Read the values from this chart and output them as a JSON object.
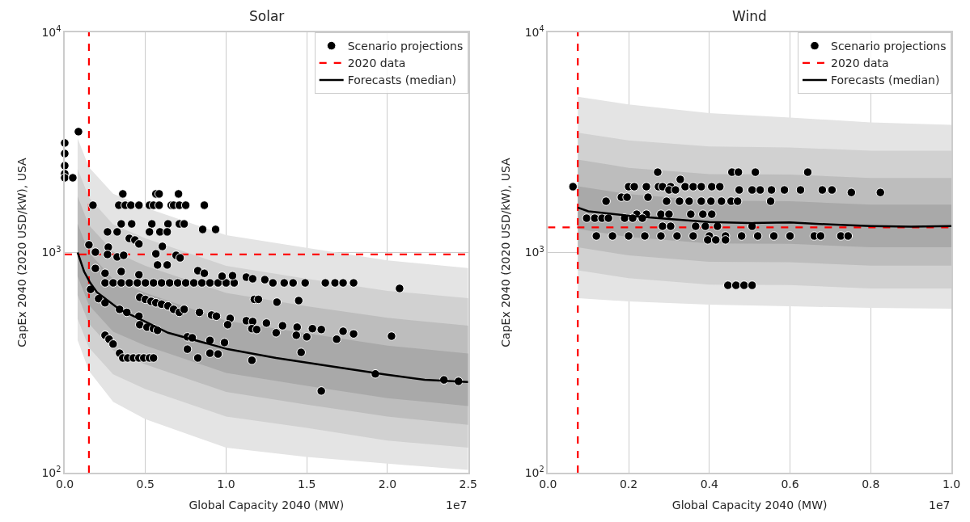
{
  "chart_data": [
    {
      "type": "scatter",
      "title": "Solar",
      "xlabel": "Global Capacity 2040 (MW)",
      "ylabel": "CapEx 2040 (2020 USD/kW), USA",
      "log": "y",
      "grid": true,
      "legend": "top right",
      "marker": "circle",
      "xlim": [
        0,
        2.5
      ],
      "xticks": [
        {
          "value": 0,
          "label": "0.0"
        },
        {
          "value": 0.5,
          "label": "0.5"
        },
        {
          "value": 1,
          "label": "1.0"
        },
        {
          "value": 1.5,
          "label": "1.5"
        },
        {
          "value": 2,
          "label": "2.0"
        },
        {
          "value": 2.5,
          "label": "2.5"
        }
      ],
      "ylim": [
        100,
        10000
      ],
      "yticks": [
        {
          "value": 100,
          "label": "10$^{2}$"
        },
        {
          "value": 1000,
          "label": "10$^{3}$"
        },
        {
          "value": 10000,
          "label": "10$^{4}$"
        }
      ],
      "annotations": [
        "1e7"
      ],
      "ref_lines": [
        {
          "axis": "x",
          "value": 0.15,
          "color": "#ff0000",
          "line_style": "dashed"
        },
        {
          "axis": "y",
          "value": 980,
          "label": "2020 data",
          "color": "#ff0000",
          "line_style": "dashed"
        }
      ],
      "series": [
        {
          "type": "line",
          "marker": "none",
          "color": "#e4e4e4",
          "x": [
            0.08,
            0.15,
            0.3,
            0.5,
            1.0,
            1.5,
            2.0,
            2.5
          ],
          "values": [
            null,
            null,
            null,
            null,
            null,
            null,
            null,
            null
          ],
          "lower": [
            400,
            290,
            210,
            175,
            130,
            118,
            110,
            103
          ],
          "upper": [
            3300,
            2440,
            1850,
            1600,
            1200,
            1050,
            920,
            850
          ]
        },
        {
          "type": "line",
          "marker": "none",
          "color": "#d1d1d1",
          "x": [
            0.08,
            0.15,
            0.3,
            0.5,
            1.0,
            1.5,
            2.0,
            2.5
          ],
          "values": [
            null,
            null,
            null,
            null,
            null,
            null,
            null,
            null
          ],
          "lower": [
            500,
            370,
            280,
            240,
            180,
            160,
            140,
            130
          ],
          "upper": [
            2400,
            1780,
            1340,
            1160,
            870,
            760,
            670,
            620
          ]
        },
        {
          "type": "line",
          "marker": "none",
          "color": "#bdbdbd",
          "x": [
            0.08,
            0.15,
            0.3,
            0.5,
            1.0,
            1.5,
            2.0,
            2.5
          ],
          "values": [
            null,
            null,
            null,
            null,
            null,
            null,
            null,
            null
          ],
          "lower": [
            640,
            475,
            360,
            310,
            233,
            204,
            180,
            165
          ],
          "upper": [
            1800,
            1330,
            1010,
            870,
            655,
            570,
            505,
            465
          ]
        },
        {
          "type": "line",
          "marker": "none",
          "color": "#a9a9a9",
          "x": [
            0.08,
            0.15,
            0.3,
            0.5,
            1.0,
            1.5,
            2.0,
            2.5
          ],
          "values": [
            null,
            null,
            null,
            null,
            null,
            null,
            null,
            null
          ],
          "lower": [
            780,
            577,
            437,
            378,
            284,
            248,
            218,
            201
          ],
          "upper": [
            1350,
            1000,
            756,
            655,
            490,
            430,
            378,
            348
          ]
        },
        {
          "type": "scatter",
          "name": "Scenario projections",
          "color": "#000000",
          "x": [
            0,
            0,
            0,
            0,
            0,
            0.05,
            0.085,
            0.36,
            0.565,
            0.585,
            0.705,
            0.175,
            0.335,
            0.375,
            0.41,
            0.46,
            0.525,
            0.55,
            0.585,
            0.66,
            0.675,
            0.71,
            0.75,
            0.865,
            0.35,
            0.415,
            0.54,
            0.64,
            0.71,
            0.74,
            0.855,
            0.935,
            0.265,
            0.325,
            0.525,
            0.59,
            0.635,
            0.4,
            0.435,
            0.46,
            0.15,
            0.27,
            0.605,
            0.19,
            0.265,
            0.325,
            0.365,
            0.565,
            0.69,
            0.715,
            0.575,
            0.635,
            0.19,
            0.25,
            0.35,
            0.46,
            0.825,
            0.865,
            0.25,
            0.3,
            0.35,
            0.4,
            0.45,
            0.5,
            0.55,
            0.6,
            0.65,
            0.7,
            0.75,
            0.8,
            0.85,
            0.9,
            0.95,
            1.0,
            1.05,
            1.29,
            1.36,
            1.415,
            1.49,
            1.615,
            1.675,
            1.725,
            1.79,
            0.975,
            1.04,
            1.125,
            1.165,
            1.24,
            2.075,
            0.16,
            1.175,
            1.2,
            1.315,
            1.45,
            0.465,
            0.5,
            0.535,
            0.565,
            0.6,
            0.64,
            0.675,
            0.71,
            0.74,
            0.835,
            0.91,
            0.94,
            1.025,
            1.125,
            1.165,
            1.25,
            1.35,
            1.44,
            1.535,
            1.59,
            1.01,
            1.16,
            1.19,
            1.31,
            1.435,
            1.5,
            1.685,
            1.725,
            1.79,
            2.025,
            0.25,
            0.275,
            0.3,
            0.34,
            0.36,
            0.39,
            0.425,
            0.46,
            0.49,
            0.525,
            0.55,
            0.21,
            0.25,
            0.34,
            0.385,
            0.46,
            0.465,
            0.51,
            0.55,
            0.575,
            0.76,
            0.79,
            0.9,
            0.99,
            0.76,
            0.825,
            0.9,
            0.95,
            1.16,
            1.465,
            1.59,
            1.925,
            2.35,
            2.44
          ],
          "values": [
            3145,
            2815,
            2480,
            2280,
            2185,
            2185,
            3540,
            1846,
            1846,
            1846,
            1846,
            1640,
            1640,
            1640,
            1640,
            1640,
            1640,
            1640,
            1640,
            1640,
            1640,
            1640,
            1640,
            1640,
            1349,
            1349,
            1349,
            1349,
            1349,
            1349,
            1273,
            1273,
            1241,
            1241,
            1241,
            1241,
            1241,
            1159,
            1140,
            1094,
            1084,
            1057,
            1066,
            1004,
            980,
            955,
            971,
            987,
            971,
            946,
            878,
            878,
            847,
            805,
            820,
            793,
            827,
            805,
            728,
            728,
            728,
            728,
            728,
            728,
            728,
            728,
            728,
            728,
            728,
            728,
            728,
            728,
            728,
            728,
            728,
            728,
            728,
            728,
            728,
            728,
            728,
            728,
            728,
            780,
            785,
            773,
            760,
            753,
            687,
            680,
            613,
            613,
            595,
            605,
            626,
            613,
            600,
            591,
            583,
            572,
            552,
            535,
            552,
            535,
            520,
            514,
            502,
            490,
            486,
            478,
            465,
            458,
            451,
            447,
            470,
            451,
            447,
            432,
            421,
            414,
            404,
            439,
            427,
            417,
            421,
            404,
            384,
            349,
            332,
            332,
            332,
            332,
            332,
            332,
            332,
            617,
            591,
            552,
            535,
            514,
            470,
            458,
            451,
            443,
            414,
            410,
            399,
            390,
            364,
            332,
            349,
            346,
            324,
            352,
            235,
            281,
            264,
            260
          ]
        },
        {
          "type": "line",
          "marker": "none",
          "name": "Forecasts (median)",
          "color": "#000000",
          "line_style": "solid",
          "x": [
            0.08,
            0.12,
            0.158,
            0.2,
            0.34,
            0.5,
            0.64,
            1.01,
            1.31,
            1.64,
            1.98,
            2.23,
            2.5
          ],
          "values": [
            1000,
            820,
            728,
            660,
            551,
            485,
            432,
            364,
            332,
            305,
            280,
            264,
            258
          ]
        }
      ]
    },
    {
      "type": "scatter",
      "title": "Wind",
      "xlabel": "Global Capacity 2040 (MW)",
      "ylabel": "CapEx 2040 (2020 USD/kW), USA",
      "log": "y",
      "grid": true,
      "legend": "top right",
      "marker": "circle",
      "xlim": [
        0,
        1
      ],
      "xticks": [
        {
          "value": 0,
          "label": "0.0"
        },
        {
          "value": 0.2,
          "label": "0.2"
        },
        {
          "value": 0.4,
          "label": "0.4"
        },
        {
          "value": 0.6,
          "label": "0.6"
        },
        {
          "value": 0.8,
          "label": "0.8"
        },
        {
          "value": 1,
          "label": "1.0"
        }
      ],
      "ylim": [
        100,
        10000
      ],
      "yticks": [
        {
          "value": 100,
          "label": "10$^{2}$"
        },
        {
          "value": 1000,
          "label": "10$^{3}$"
        },
        {
          "value": 10000,
          "label": "10$^{4}$"
        }
      ],
      "annotations": [
        "1e7"
      ],
      "ref_lines": [
        {
          "axis": "x",
          "value": 0.074,
          "color": "#ff0000",
          "line_style": "dashed"
        },
        {
          "axis": "y",
          "value": 1300,
          "label": "2020 data",
          "color": "#ff0000",
          "line_style": "dashed"
        }
      ],
      "series": [
        {
          "type": "line",
          "marker": "none",
          "color": "#e4e4e4",
          "x": [
            0.074,
            0.2,
            0.4,
            0.6,
            0.8,
            1.0
          ],
          "values": [
            null,
            null,
            null,
            null,
            null,
            null
          ],
          "lower": [
            620,
            600,
            580,
            570,
            560,
            556
          ],
          "upper": [
            5100,
            4700,
            4300,
            4100,
            3900,
            3800
          ]
        },
        {
          "type": "line",
          "marker": "none",
          "color": "#d1d1d1",
          "x": [
            0.074,
            0.2,
            0.4,
            0.6,
            0.8,
            1.0
          ],
          "values": [
            null,
            null,
            null,
            null,
            null,
            null
          ],
          "lower": [
            830,
            765,
            715,
            712,
            686,
            686
          ],
          "upper": [
            3500,
            3230,
            3030,
            3000,
            2900,
            2900
          ]
        },
        {
          "type": "line",
          "marker": "none",
          "color": "#bdbdbd",
          "x": [
            0.074,
            0.2,
            0.4,
            0.6,
            0.8,
            1.0
          ],
          "values": [
            null,
            null,
            null,
            null,
            null,
            null
          ],
          "lower": [
            1056,
            970,
            908,
            904,
            871,
            871
          ],
          "upper": [
            2640,
            2425,
            2270,
            2260,
            2180,
            2180
          ]
        },
        {
          "type": "line",
          "marker": "none",
          "color": "#a9a9a9",
          "x": [
            0.074,
            0.2,
            0.4,
            0.6,
            0.8,
            1.0
          ],
          "values": [
            null,
            null,
            null,
            null,
            null,
            null
          ],
          "lower": [
            1280,
            1176,
            1100,
            1096,
            1056,
            1056
          ],
          "upper": [
            2000,
            1840,
            1720,
            1710,
            1650,
            1650
          ]
        },
        {
          "type": "scatter",
          "name": "Scenario projections",
          "color": "#000000",
          "x": [
            0.272,
            0.456,
            0.472,
            0.514,
            0.644,
            0.328,
            0.062,
            0.2,
            0.214,
            0.244,
            0.274,
            0.284,
            0.304,
            0.34,
            0.36,
            0.38,
            0.406,
            0.426,
            0.3,
            0.316,
            0.474,
            0.506,
            0.526,
            0.554,
            0.586,
            0.626,
            0.68,
            0.704,
            0.752,
            0.824,
            0.182,
            0.196,
            0.248,
            0.144,
            0.294,
            0.326,
            0.35,
            0.38,
            0.404,
            0.43,
            0.454,
            0.47,
            0.552,
            0.22,
            0.244,
            0.28,
            0.3,
            0.354,
            0.384,
            0.406,
            0.096,
            0.116,
            0.134,
            0.15,
            0.19,
            0.21,
            0.234,
            0.284,
            0.304,
            0.366,
            0.39,
            0.42,
            0.506,
            0.12,
            0.16,
            0.2,
            0.24,
            0.28,
            0.32,
            0.36,
            0.4,
            0.44,
            0.48,
            0.52,
            0.56,
            0.6,
            0.66,
            0.676,
            0.726,
            0.744,
            0.396,
            0.416,
            0.44,
            0.446,
            0.466,
            0.486,
            0.506
          ],
          "values": [
            2317,
            2317,
            2317,
            2317,
            2317,
            2148,
            1991,
            1991,
            1991,
            1991,
            1991,
            1991,
            1991,
            1991,
            1991,
            1991,
            1991,
            1991,
            1924,
            1924,
            1924,
            1924,
            1924,
            1924,
            1924,
            1924,
            1924,
            1924,
            1874,
            1874,
            1783,
            1783,
            1783,
            1710,
            1710,
            1710,
            1710,
            1710,
            1710,
            1710,
            1710,
            1710,
            1710,
            1493,
            1493,
            1493,
            1493,
            1493,
            1493,
            1493,
            1432,
            1432,
            1432,
            1432,
            1432,
            1432,
            1432,
            1316,
            1316,
            1316,
            1316,
            1316,
            1316,
            1189,
            1189,
            1189,
            1189,
            1189,
            1189,
            1189,
            1189,
            1189,
            1189,
            1189,
            1189,
            1189,
            1189,
            1189,
            1189,
            1189,
            1141,
            1141,
            1141,
            710,
            710,
            710,
            710
          ]
        },
        {
          "type": "line",
          "marker": "none",
          "name": "Forecasts (median)",
          "color": "#000000",
          "line_style": "solid",
          "x": [
            0.074,
            0.1,
            0.2,
            0.3,
            0.4,
            0.5,
            0.6,
            0.7,
            0.8,
            0.9,
            1.0
          ],
          "values": [
            1600,
            1540,
            1470,
            1420,
            1375,
            1360,
            1370,
            1340,
            1320,
            1310,
            1320
          ]
        }
      ]
    }
  ]
}
